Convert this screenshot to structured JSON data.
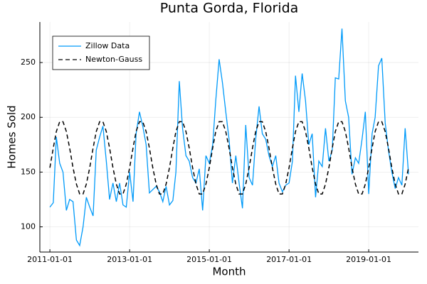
{
  "chart_data": {
    "type": "line",
    "title": "Punta Gorda, Florida",
    "x_label": "Month",
    "y_label": "Homes Sold",
    "x": [
      "2011-01-01",
      "2011-02-01",
      "2011-03-01",
      "2011-04-01",
      "2011-05-01",
      "2011-06-01",
      "2011-07-01",
      "2011-08-01",
      "2011-09-01",
      "2011-10-01",
      "2011-11-01",
      "2011-12-01",
      "2012-01-01",
      "2012-02-01",
      "2012-03-01",
      "2012-04-01",
      "2012-05-01",
      "2012-06-01",
      "2012-07-01",
      "2012-08-01",
      "2012-09-01",
      "2012-10-01",
      "2012-11-01",
      "2012-12-01",
      "2013-01-01",
      "2013-02-01",
      "2013-03-01",
      "2013-04-01",
      "2013-05-01",
      "2013-06-01",
      "2013-07-01",
      "2013-08-01",
      "2013-09-01",
      "2013-10-01",
      "2013-11-01",
      "2013-12-01",
      "2014-01-01",
      "2014-02-01",
      "2014-03-01",
      "2014-04-01",
      "2014-05-01",
      "2014-06-01",
      "2014-07-01",
      "2014-08-01",
      "2014-09-01",
      "2014-10-01",
      "2014-11-01",
      "2014-12-01",
      "2015-01-01",
      "2015-02-01",
      "2015-03-01",
      "2015-04-01",
      "2015-05-01",
      "2015-06-01",
      "2015-07-01",
      "2015-08-01",
      "2015-09-01",
      "2015-10-01",
      "2015-11-01",
      "2015-12-01",
      "2016-01-01",
      "2016-02-01",
      "2016-03-01",
      "2016-04-01",
      "2016-05-01",
      "2016-06-01",
      "2016-07-01",
      "2016-08-01",
      "2016-09-01",
      "2016-10-01",
      "2016-11-01",
      "2016-12-01",
      "2017-01-01",
      "2017-02-01",
      "2017-03-01",
      "2017-04-01",
      "2017-05-01",
      "2017-06-01",
      "2017-07-01",
      "2017-08-01",
      "2017-09-01",
      "2017-10-01",
      "2017-11-01",
      "2017-12-01",
      "2018-01-01",
      "2018-02-01",
      "2018-03-01",
      "2018-04-01",
      "2018-05-01",
      "2018-06-01",
      "2018-07-01",
      "2018-08-01",
      "2018-09-01",
      "2018-10-01",
      "2018-11-01",
      "2018-12-01",
      "2019-01-01",
      "2019-02-01",
      "2019-03-01",
      "2019-04-01",
      "2019-05-01",
      "2019-06-01",
      "2019-07-01",
      "2019-08-01",
      "2019-09-01",
      "2019-10-01",
      "2019-11-01",
      "2019-12-01",
      "2020-01-01"
    ],
    "series": [
      {
        "name": "Zillow Data",
        "color": "#009af9",
        "style": "solid",
        "values": [
          118,
          122,
          182,
          158,
          150,
          115,
          125,
          123,
          88,
          83,
          100,
          127,
          118,
          110,
          170,
          182,
          192,
          160,
          125,
          140,
          123,
          140,
          120,
          118,
          150,
          123,
          185,
          205,
          192,
          175,
          131,
          134,
          137,
          132,
          123,
          137,
          120,
          124,
          150,
          233,
          190,
          165,
          160,
          145,
          140,
          153,
          115,
          165,
          158,
          175,
          215,
          253,
          232,
          205,
          180,
          140,
          165,
          140,
          117,
          193,
          145,
          138,
          180,
          210,
          185,
          180,
          165,
          155,
          165,
          140,
          132,
          138,
          140,
          160,
          238,
          205,
          240,
          215,
          175,
          185,
          127,
          160,
          155,
          190,
          160,
          170,
          236,
          235,
          281,
          215,
          200,
          148,
          163,
          158,
          180,
          205,
          130,
          185,
          200,
          247,
          254,
          195,
          170,
          150,
          135,
          145,
          138,
          190,
          148
        ]
      },
      {
        "name": "Newton-Gauss",
        "color": "#000000",
        "style": "dashed",
        "values": [
          154,
          172,
          187,
          196,
          196,
          187,
          172,
          154,
          139,
          130,
          130,
          139,
          154,
          172,
          187,
          196,
          196,
          187,
          172,
          154,
          139,
          130,
          130,
          139,
          154,
          172,
          187,
          196,
          196,
          187,
          172,
          154,
          139,
          130,
          130,
          139,
          154,
          172,
          187,
          196,
          196,
          187,
          172,
          154,
          139,
          130,
          130,
          139,
          154,
          172,
          187,
          196,
          196,
          187,
          172,
          154,
          139,
          130,
          130,
          139,
          154,
          172,
          187,
          196,
          196,
          187,
          172,
          154,
          139,
          130,
          130,
          139,
          154,
          172,
          187,
          196,
          196,
          187,
          172,
          154,
          139,
          130,
          130,
          139,
          154,
          172,
          187,
          196,
          196,
          187,
          172,
          154,
          139,
          130,
          130,
          139,
          154,
          172,
          187,
          196,
          196,
          187,
          172,
          154,
          139,
          130,
          130,
          139,
          154
        ]
      }
    ],
    "xlim": [
      "2010-10-01",
      "2020-04-01"
    ],
    "xticks": [
      "2011-01-01",
      "2013-01-01",
      "2015-01-01",
      "2017-01-01",
      "2019-01-01"
    ],
    "ylim": [
      77,
      287
    ],
    "yticks": [
      100,
      150,
      200,
      250
    ],
    "grid": true,
    "legend": "top-left"
  }
}
